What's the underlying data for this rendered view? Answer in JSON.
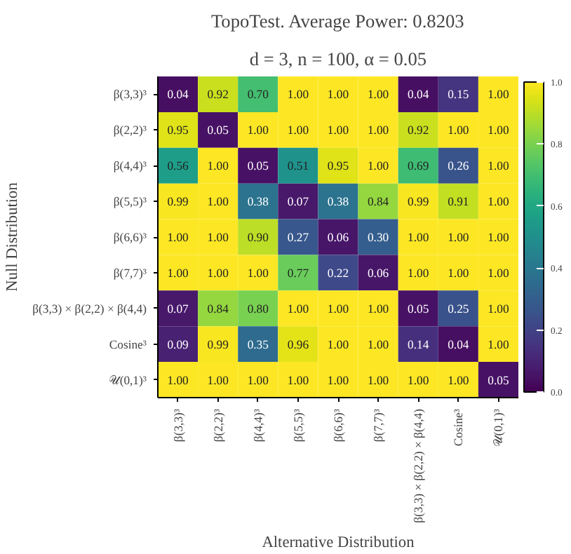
{
  "chart_data": {
    "type": "heatmap",
    "title": "TopoTest. Average Power: 0.8203",
    "subtitle": "d = 3, n = 100, α = 0.05",
    "xlabel": "Alternative Distribution",
    "ylabel": "Null Distribution",
    "categories": [
      "β(3,3)³",
      "β(2,2)³",
      "β(4,4)³",
      "β(5,5)³",
      "β(6,6)³",
      "β(7,7)³",
      "β(3,3) × β(2,2) × β(4,4)",
      "Cosine³",
      "𝒰(0,1)³"
    ],
    "y_categories": [
      "β(3,3)³",
      "β(2,2)³",
      "β(4,4)³",
      "β(5,5)³",
      "β(6,6)³",
      "β(7,7)³",
      "β(3,3) × β(2,2) × β(4,4)",
      "Cosine³",
      "𝒰(0,1)³"
    ],
    "cells": [
      [
        0.04,
        0.92,
        0.7,
        1.0,
        1.0,
        1.0,
        0.04,
        0.15,
        1.0
      ],
      [
        0.95,
        0.05,
        1.0,
        1.0,
        1.0,
        1.0,
        0.92,
        1.0,
        1.0
      ],
      [
        0.56,
        1.0,
        0.05,
        0.51,
        0.95,
        1.0,
        0.69,
        0.26,
        1.0
      ],
      [
        0.99,
        1.0,
        0.38,
        0.07,
        0.38,
        0.84,
        0.99,
        0.91,
        1.0
      ],
      [
        1.0,
        1.0,
        0.9,
        0.27,
        0.06,
        0.3,
        1.0,
        1.0,
        1.0
      ],
      [
        1.0,
        1.0,
        1.0,
        0.77,
        0.22,
        0.06,
        1.0,
        1.0,
        1.0
      ],
      [
        0.07,
        0.84,
        0.8,
        1.0,
        1.0,
        1.0,
        0.05,
        0.25,
        1.0
      ],
      [
        0.09,
        0.99,
        0.35,
        0.96,
        1.0,
        1.0,
        0.14,
        0.04,
        1.0
      ],
      [
        1.0,
        1.0,
        1.0,
        1.0,
        1.0,
        1.0,
        1.0,
        1.0,
        0.05
      ]
    ],
    "cell_labels": [
      [
        "0.04",
        "0.92",
        "0.70",
        "1.00",
        "1.00",
        "1.00",
        "0.04",
        "0.15",
        "1.00"
      ],
      [
        "0.95",
        "0.05",
        "1.00",
        "1.00",
        "1.00",
        "1.00",
        "0.92",
        "1.00",
        "1.00"
      ],
      [
        "0.56",
        "1.00",
        "0.05",
        "0.51",
        "0.95",
        "1.00",
        "0.69",
        "0.26",
        "1.00"
      ],
      [
        "0.99",
        "1.00",
        "0.38",
        "0.07",
        "0.38",
        "0.84",
        "0.99",
        "0.91",
        "1.00"
      ],
      [
        "1.00",
        "1.00",
        "0.90",
        "0.27",
        "0.06",
        "0.30",
        "1.00",
        "1.00",
        "1.00"
      ],
      [
        "1.00",
        "1.00",
        "1.00",
        "0.77",
        "0.22",
        "0.06",
        "1.00",
        "1.00",
        "1.00"
      ],
      [
        "0.07",
        "0.84",
        "0.80",
        "1.00",
        "1.00",
        "1.00",
        "0.05",
        "0.25",
        "1.00"
      ],
      [
        "0.09",
        "0.99",
        "0.35",
        "0.96",
        "1.00",
        "1.00",
        "0.14",
        "0.04",
        "1.00"
      ],
      [
        "1.00",
        "1.00",
        "1.00",
        "1.00",
        "1.00",
        "1.00",
        "1.00",
        "1.00",
        "0.05"
      ]
    ],
    "clim": [
      0,
      1
    ],
    "cticks": [
      {
        "value": 0,
        "label": "0.0"
      },
      {
        "value": 0.2,
        "label": "0.2"
      },
      {
        "value": 0.4,
        "label": "0.4"
      },
      {
        "value": 0.6,
        "label": "0.6"
      },
      {
        "value": 0.8,
        "label": "0.8"
      },
      {
        "value": 1,
        "label": "1.0"
      }
    ]
  }
}
